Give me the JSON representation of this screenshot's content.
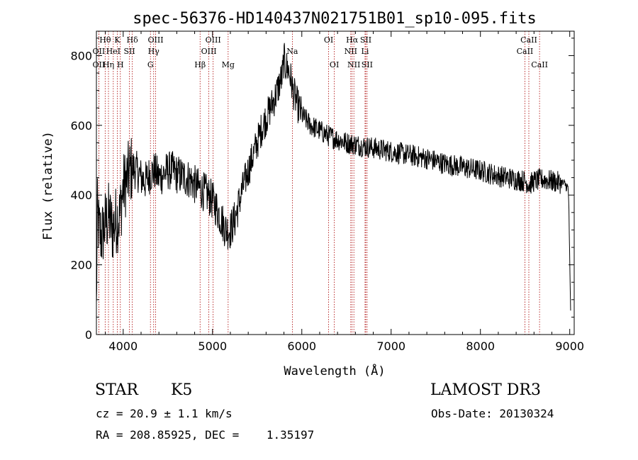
{
  "colors": {
    "spectrum": "#000000",
    "lines": "#aa0000",
    "axes": "#000000",
    "background": "#ffffff"
  },
  "chart_data": {
    "type": "line",
    "title": "spec-56376-HD140437N021751B01_sp10-095.fits",
    "xlabel": "Wavelength (Å)",
    "ylabel": "Flux (relative)",
    "xlim": [
      3700,
      9050
    ],
    "ylim": [
      0,
      870
    ],
    "xticks": [
      4000,
      5000,
      6000,
      7000,
      8000,
      9000
    ],
    "xtick_labels": [
      "4000",
      "5000",
      "6000",
      "7000",
      "8000",
      "9000"
    ],
    "yticks": [
      0,
      200,
      400,
      600,
      800
    ],
    "ytick_labels": [
      "0",
      "200",
      "400",
      "600",
      "800"
    ],
    "grid": false,
    "spectrum_envelope": {
      "x": [
        3700,
        3710,
        3730,
        3760,
        3800,
        3840,
        3880,
        3920,
        3960,
        4000,
        4050,
        4100,
        4150,
        4200,
        4250,
        4300,
        4350,
        4400,
        4450,
        4500,
        4550,
        4600,
        4650,
        4700,
        4750,
        4800,
        4850,
        4900,
        4950,
        5000,
        5050,
        5100,
        5150,
        5200,
        5250,
        5300,
        5350,
        5400,
        5450,
        5500,
        5550,
        5600,
        5650,
        5700,
        5750,
        5780,
        5800,
        5820,
        5850,
        5880,
        5900,
        5950,
        6000,
        6100,
        6200,
        6300,
        6400,
        6500,
        6600,
        6700,
        6800,
        6900,
        7000,
        7200,
        7400,
        7600,
        7800,
        8000,
        8200,
        8400,
        8500,
        8550,
        8600,
        8700,
        8800,
        8900,
        8950,
        8980,
        8990,
        9000,
        9010
      ],
      "y": [
        60,
        350,
        300,
        280,
        320,
        340,
        300,
        330,
        340,
        420,
        450,
        480,
        470,
        450,
        440,
        460,
        470,
        450,
        460,
        470,
        470,
        460,
        455,
        450,
        445,
        430,
        420,
        410,
        400,
        385,
        360,
        330,
        300,
        300,
        330,
        380,
        430,
        470,
        510,
        550,
        590,
        620,
        650,
        680,
        720,
        740,
        790,
        770,
        760,
        730,
        700,
        660,
        630,
        600,
        585,
        570,
        560,
        550,
        545,
        540,
        535,
        530,
        525,
        515,
        505,
        490,
        480,
        470,
        455,
        445,
        440,
        430,
        440,
        445,
        440,
        435,
        430,
        420,
        380,
        200,
        60
      ],
      "noise": 32
    },
    "annotations": [
      {
        "label": "Hθ",
        "x": 3798,
        "row": 0
      },
      {
        "label": "OII",
        "x": 3727,
        "row": 1
      },
      {
        "label": "OII",
        "x": 3727,
        "row": 2
      },
      {
        "label": "Hη",
        "x": 3835,
        "row": 2
      },
      {
        "label": "HeI",
        "x": 3889,
        "row": 1
      },
      {
        "label": "K",
        "x": 3934,
        "row": 0
      },
      {
        "label": "H",
        "x": 3968,
        "row": 2
      },
      {
        "label": "SII",
        "x": 4070,
        "row": 1
      },
      {
        "label": "Hδ",
        "x": 4102,
        "row": 0
      },
      {
        "label": "OIII",
        "x": 4363,
        "row": 0
      },
      {
        "label": "Hγ",
        "x": 4341,
        "row": 1
      },
      {
        "label": "G",
        "x": 4305,
        "row": 2
      },
      {
        "label": "OIII",
        "x": 5007,
        "row": 0
      },
      {
        "label": "OIII",
        "x": 4959,
        "row": 1
      },
      {
        "label": "Hβ",
        "x": 4861,
        "row": 2
      },
      {
        "label": "Mg",
        "x": 5175,
        "row": 2
      },
      {
        "label": "Na",
        "x": 5894,
        "row": 1
      },
      {
        "label": "OI",
        "x": 6300,
        "row": 0
      },
      {
        "label": "OI",
        "x": 6364,
        "row": 2
      },
      {
        "label": "Hα",
        "x": 6563,
        "row": 0
      },
      {
        "label": "NII",
        "x": 6548,
        "row": 1
      },
      {
        "label": "NII",
        "x": 6583,
        "row": 2
      },
      {
        "label": "SII",
        "x": 6716,
        "row": 0
      },
      {
        "label": "Li",
        "x": 6708,
        "row": 1
      },
      {
        "label": "SII",
        "x": 6731,
        "row": 2
      },
      {
        "label": "CaII",
        "x": 8542,
        "row": 0
      },
      {
        "label": "CaII",
        "x": 8498,
        "row": 1
      },
      {
        "label": "CaII",
        "x": 8662,
        "row": 2
      }
    ]
  },
  "info": {
    "object_class": "STAR",
    "subclass": "K5",
    "survey": "LAMOST DR3",
    "redshift": "cz = 20.9 ± 1.1 km/s",
    "obs_date": "Obs-Date: 20130324",
    "coords": "RA = 208.85925, DEC =    1.35197"
  }
}
